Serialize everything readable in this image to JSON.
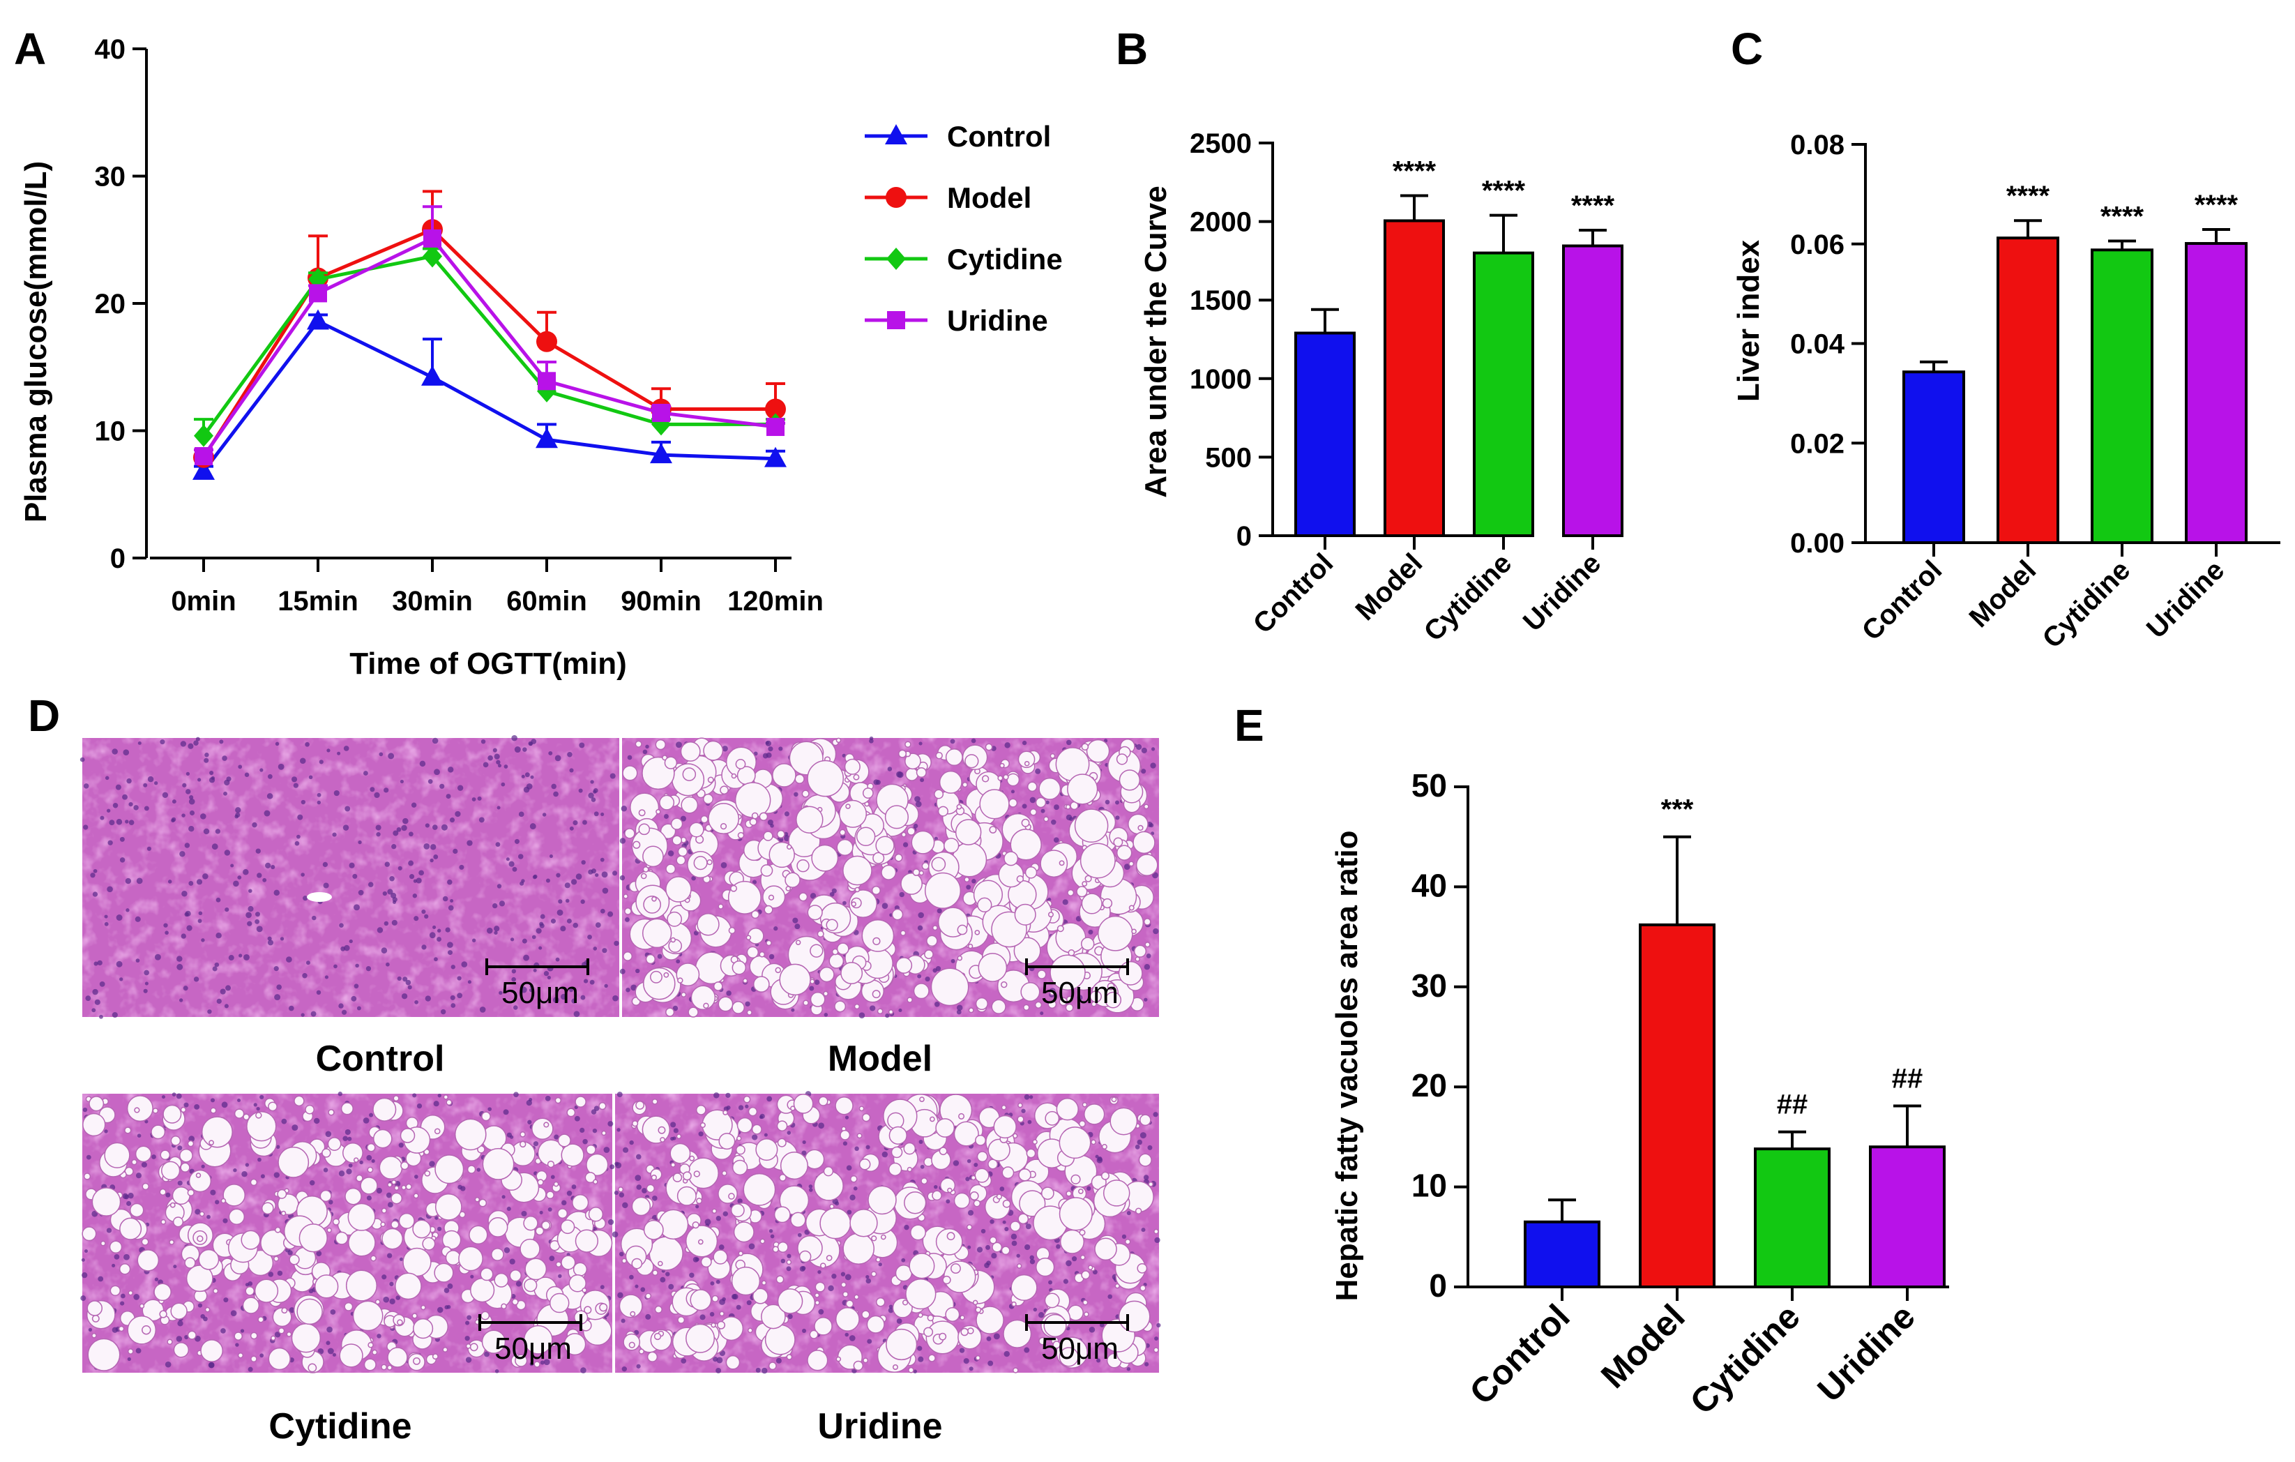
{
  "colors": {
    "Control": "#1010ee",
    "Model": "#ee1010",
    "Cytidine": "#12c812",
    "Uridine": "#b812e8"
  },
  "chart_data": [
    {
      "panel": "A",
      "type": "line",
      "title": "",
      "xlabel": "Time of OGTT(min)",
      "ylabel": "Plasma glucose(mmol/L)",
      "categories": [
        "0min",
        "15min",
        "30min",
        "60min",
        "90min",
        "120min"
      ],
      "ylim": [
        0,
        40
      ],
      "yticks": [
        0,
        10,
        20,
        30,
        40
      ],
      "legend_position": "right",
      "series": [
        {
          "name": "Control",
          "marker": "triangle",
          "values": [
            6.8,
            18.6,
            14.2,
            9.3,
            8.1,
            7.8
          ],
          "errors": [
            0.4,
            0.5,
            3.0,
            1.2,
            1.0,
            0.6
          ]
        },
        {
          "name": "Model",
          "marker": "circle",
          "values": [
            7.9,
            22.0,
            25.8,
            17.0,
            11.7,
            11.7
          ],
          "errors": [
            0.6,
            3.3,
            3.0,
            2.3,
            1.6,
            2.0
          ]
        },
        {
          "name": "Cytidine",
          "marker": "diamond",
          "values": [
            9.6,
            21.9,
            23.7,
            13.1,
            10.5,
            10.5
          ],
          "errors": [
            1.3,
            0.5,
            0.6,
            0.6,
            0.4,
            0.4
          ]
        },
        {
          "name": "Uridine",
          "marker": "square",
          "values": [
            8.0,
            20.8,
            25.1,
            13.9,
            11.4,
            10.3
          ],
          "errors": [
            0.5,
            0.6,
            2.5,
            1.5,
            0.5,
            0.3
          ]
        }
      ]
    },
    {
      "panel": "B",
      "type": "bar",
      "title": "",
      "xlabel": "",
      "ylabel": "Area under the  Curve",
      "categories": [
        "Control",
        "Model",
        "Cytidine",
        "Uridine"
      ],
      "values": [
        1290,
        2005,
        1800,
        1845
      ],
      "errors": [
        150,
        160,
        240,
        100
      ],
      "significance": [
        "",
        "****",
        "****",
        "****"
      ],
      "ylim": [
        0,
        2500
      ],
      "yticks": [
        0,
        500,
        1000,
        1500,
        2000,
        2500
      ]
    },
    {
      "panel": "C",
      "type": "bar",
      "title": "",
      "xlabel": "",
      "ylabel": "Liver index",
      "categories": [
        "Control",
        "Model",
        "Cytidine",
        "Uridine"
      ],
      "values": [
        0.0343,
        0.0612,
        0.0588,
        0.0601
      ],
      "errors": [
        0.002,
        0.0035,
        0.0018,
        0.0028
      ],
      "significance": [
        "",
        "****",
        "****",
        "****"
      ],
      "ylim": [
        0,
        0.08
      ],
      "yticks": [
        "0.00",
        "0.02",
        "0.04",
        "0.06",
        "0.08"
      ]
    },
    {
      "panel": "E",
      "type": "bar",
      "title": "",
      "xlabel": "",
      "ylabel": "Hepatic fatty vacuoles area ratio",
      "categories": [
        "Control",
        "Model",
        "Cytidine",
        "Uridine"
      ],
      "values": [
        6.5,
        36.2,
        13.8,
        14.0
      ],
      "errors": [
        2.2,
        8.8,
        1.7,
        4.1
      ],
      "significance": [
        "",
        "***",
        "##",
        "##"
      ],
      "ylim": [
        0,
        50
      ],
      "yticks": [
        0,
        10,
        20,
        30,
        40,
        50
      ]
    }
  ],
  "panel_d": {
    "label": "D",
    "scale_bar": "50μm",
    "images": [
      {
        "caption": "Control",
        "fat": 0
      },
      {
        "caption": "Model",
        "fat": 1
      },
      {
        "caption": "Cytidine",
        "fat": 0.7
      },
      {
        "caption": "Uridine",
        "fat": 0.8
      }
    ]
  }
}
